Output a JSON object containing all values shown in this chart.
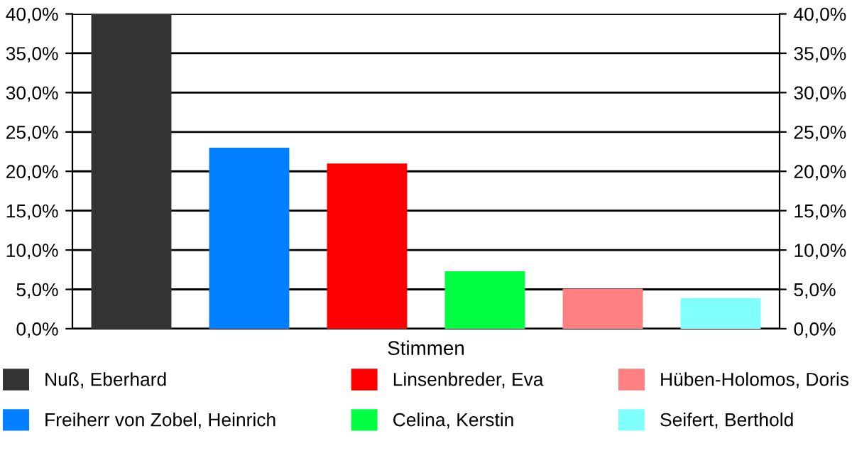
{
  "chart_data": {
    "type": "bar",
    "xlabel": null,
    "categories": [
      "Stimmen"
    ],
    "series": [
      {
        "name": "Nuß, Eberhard",
        "color": "#333333",
        "values": [
          40.0
        ]
      },
      {
        "name": "Freiherr von Zobel, Heinrich",
        "color": "#0080ff",
        "values": [
          23.0
        ]
      },
      {
        "name": "Linsenbreder, Eva",
        "color": "#ff0000",
        "values": [
          21.0
        ]
      },
      {
        "name": "Celina, Kerstin",
        "color": "#00ff40",
        "values": [
          7.3
        ]
      },
      {
        "name": "Hüben-Holomos, Doris",
        "color": "#ff8080",
        "values": [
          5.1
        ]
      },
      {
        "name": "Seifert, Berthold",
        "color": "#80ffff",
        "values": [
          3.9
        ]
      }
    ],
    "ylim": [
      0,
      40
    ],
    "yticks": [
      {
        "value": 0,
        "label": "0,0%"
      },
      {
        "value": 5,
        "label": "5,0%"
      },
      {
        "value": 10,
        "label": "10,0%"
      },
      {
        "value": 15,
        "label": "15,0%"
      },
      {
        "value": 20,
        "label": "20,0%"
      },
      {
        "value": 25,
        "label": "25,0%"
      },
      {
        "value": 30,
        "label": "30,0%"
      },
      {
        "value": 35,
        "label": "35,0%"
      },
      {
        "value": 40,
        "label": "40,0%"
      }
    ],
    "grid": "y",
    "legend": "bottom"
  }
}
